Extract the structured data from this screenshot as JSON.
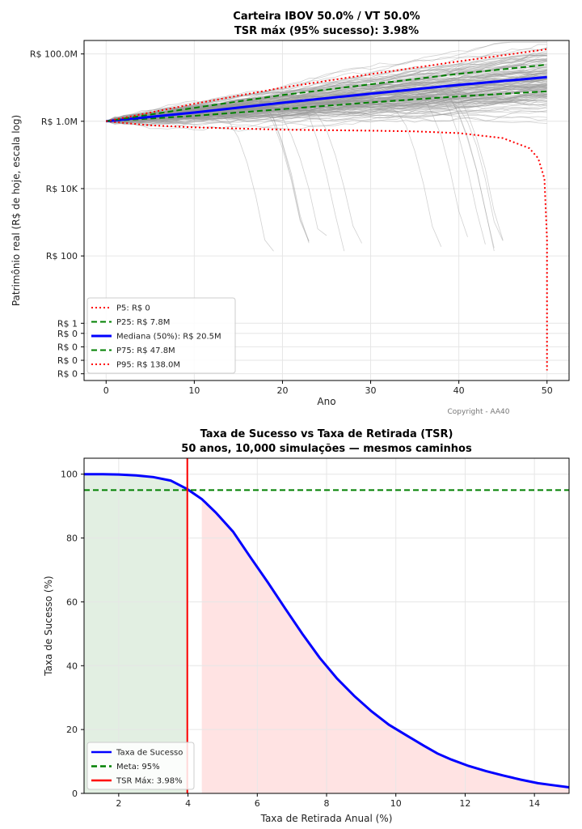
{
  "chart_data": [
    {
      "type": "line",
      "title": "Carteira IBOV 50.0% / VT 50.0%",
      "subtitle": "TSR máx (95% sucesso): 3.98%",
      "xlabel": "Ano",
      "ylabel": "Patrimônio real (R$ de hoje, escala log)",
      "y_scale": "log",
      "xlim": [
        -2.5,
        52.5
      ],
      "ylim_log10": [
        -1.7,
        8.4
      ],
      "x_ticks": [
        0,
        10,
        20,
        30,
        40,
        50
      ],
      "y_ticks": [
        {
          "log10": 8,
          "label": "R$ 100.0M"
        },
        {
          "log10": 6,
          "label": "R$ 1.0M"
        },
        {
          "log10": 4,
          "label": "R$ 10K"
        },
        {
          "log10": 2,
          "label": "R$ 100"
        },
        {
          "log10": 0,
          "label": "R$ 1"
        },
        {
          "log10": -0.3,
          "label": "R$ 0"
        },
        {
          "log10": -0.7,
          "label": "R$ 0"
        },
        {
          "log10": -1.1,
          "label": "R$ 0"
        },
        {
          "log10": -1.5,
          "label": "R$ 0"
        }
      ],
      "grid": true,
      "legend_position": "lower-left",
      "copyright": "Copyright - AA40",
      "series": [
        {
          "name": "P5: R$ 0",
          "style": "dotted",
          "color": "#ff0000",
          "x": [
            0,
            5,
            10,
            20,
            30,
            35,
            40,
            45,
            48,
            49,
            49.7,
            50,
            50
          ],
          "log10": [
            6,
            5.88,
            5.82,
            5.75,
            5.72,
            5.7,
            5.65,
            5.5,
            5.2,
            4.9,
            4.3,
            2.5,
            -1.4
          ]
        },
        {
          "name": "P25: R$ 7.8M",
          "style": "dashed",
          "color": "#008000",
          "x": [
            0,
            10,
            20,
            30,
            40,
            50
          ],
          "log10": [
            6,
            6.16,
            6.36,
            6.56,
            6.74,
            6.89
          ]
        },
        {
          "name": "Mediana (50%): R$ 20.5M",
          "style": "solid",
          "color": "#0000ff",
          "x": [
            0,
            10,
            20,
            30,
            40,
            50
          ],
          "log10": [
            6,
            6.26,
            6.55,
            6.82,
            7.08,
            7.31
          ]
        },
        {
          "name": "P75: R$ 47.8M",
          "style": "dashed",
          "color": "#008000",
          "x": [
            0,
            10,
            20,
            30,
            40,
            50
          ],
          "log10": [
            6,
            6.4,
            6.78,
            7.1,
            7.41,
            7.68
          ]
        },
        {
          "name": "P95: R$ 138.0M",
          "style": "dotted",
          "color": "#ff0000",
          "x": [
            0,
            10,
            20,
            30,
            40,
            50
          ],
          "log10": [
            6,
            6.52,
            7.0,
            7.4,
            7.78,
            8.14
          ]
        }
      ],
      "colors": {
        "paths": "#9a9a9a",
        "p5": "#ff0000",
        "p25_p75": "#008000",
        "median": "#0000ff"
      }
    },
    {
      "type": "line",
      "title": "Taxa de Sucesso vs Taxa de Retirada (TSR)",
      "subtitle": "50 anos, 10,000 simulações — mesmos caminhos",
      "xlabel": "Taxa de Retirada Anual (%)",
      "ylabel": "Taxa de Sucesso (%)",
      "xlim": [
        1,
        15
      ],
      "ylim": [
        0,
        105
      ],
      "x_ticks": [
        2,
        4,
        6,
        8,
        10,
        12,
        14
      ],
      "y_ticks": [
        0,
        20,
        40,
        60,
        80,
        100
      ],
      "grid": true,
      "legend_position": "lower-left",
      "meta": 95,
      "tsr_max": 3.98,
      "shade_green_range": [
        1,
        3.98
      ],
      "shade_red_range": [
        4.4,
        15
      ],
      "series": [
        {
          "name": "Taxa de Sucesso",
          "style": "solid",
          "color": "#0000ff",
          "x": [
            1,
            1.5,
            2,
            2.5,
            3,
            3.5,
            3.98,
            4.4,
            4.8,
            5.3,
            5.8,
            6.3,
            6.8,
            7.3,
            7.8,
            8.3,
            8.8,
            9.3,
            9.8,
            10.3,
            10.8,
            11.2,
            11.6,
            12.1,
            12.6,
            13.1,
            13.6,
            14.1,
            14.5,
            15
          ],
          "values": [
            100,
            100,
            99.9,
            99.6,
            99.1,
            98.0,
            95.3,
            92.2,
            88.0,
            82.0,
            74.0,
            66.2,
            58.0,
            50.0,
            42.5,
            36.0,
            30.5,
            25.7,
            21.5,
            18.2,
            15.0,
            12.5,
            10.6,
            8.6,
            7.0,
            5.6,
            4.3,
            3.2,
            2.6,
            1.9
          ]
        },
        {
          "name": "Meta: 95%",
          "style": "dashed",
          "color": "#008000"
        },
        {
          "name": "TSR Máx: 3.98%",
          "style": "solid",
          "color": "#ff0000"
        }
      ]
    }
  ]
}
